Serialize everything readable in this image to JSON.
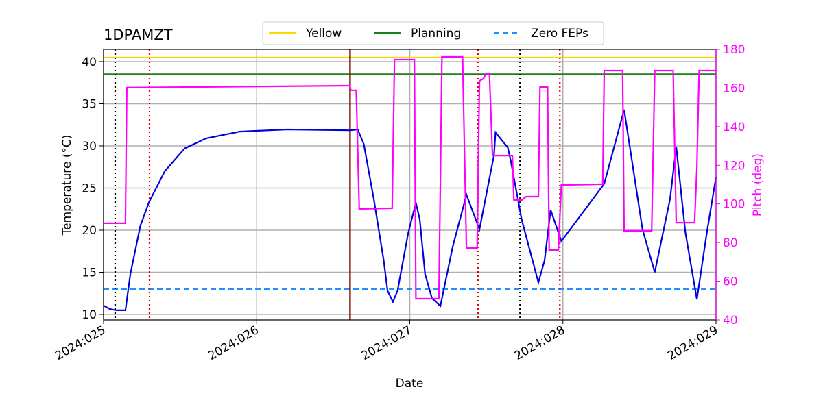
{
  "chart_data": {
    "type": "line",
    "title": "1DPAMZT",
    "xlabel": "Date",
    "ylabel": "Temperature (°C)",
    "y2label": "Pitch (deg)",
    "xlim": [
      25,
      29
    ],
    "xticks": [
      {
        "value": 25,
        "label": "2024:025"
      },
      {
        "value": 26,
        "label": "2024:026"
      },
      {
        "value": 27,
        "label": "2024:027"
      },
      {
        "value": 28,
        "label": "2024:028"
      },
      {
        "value": 29,
        "label": "2024:029"
      }
    ],
    "ylim": [
      9.35,
      41.46
    ],
    "yticks": [
      10,
      15,
      20,
      25,
      30,
      35,
      40
    ],
    "y2lim": [
      40,
      180
    ],
    "y2ticks": [
      40,
      60,
      80,
      100,
      120,
      140,
      160,
      180
    ],
    "y2color": "#ff00ff",
    "grid": true,
    "legend": "top",
    "limits": [
      {
        "name": "Yellow",
        "color": "#ffd700",
        "value": 40.5,
        "style": "solid"
      },
      {
        "name": "Planning",
        "color": "#1a801a",
        "value": 38.5,
        "style": "solid"
      },
      {
        "name": "Zero FEPs",
        "color": "#1e90ff",
        "value": 13,
        "style": "dashed"
      }
    ],
    "vlines": [
      {
        "x": 25.076,
        "color": "#000000",
        "style": "dotted"
      },
      {
        "x": 25.3,
        "color": "#dd0000",
        "style": "dotted"
      },
      {
        "x": 26.61,
        "color": "#1a801a",
        "style": "solid"
      },
      {
        "x": 26.61,
        "color": "#8b0000",
        "style": "solid"
      },
      {
        "x": 27.445,
        "color": "#dd0000",
        "style": "dotted"
      },
      {
        "x": 27.72,
        "color": "#000000",
        "style": "dotted"
      },
      {
        "x": 27.98,
        "color": "#dd0000",
        "style": "dotted"
      }
    ],
    "series": [
      {
        "color": "#0000dd",
        "x": [
          25.0,
          25.04,
          25.085,
          25.143,
          25.175,
          25.24,
          25.296,
          25.4,
          25.53,
          25.67,
          25.89,
          26.2,
          26.61,
          26.66,
          26.7,
          26.765,
          26.83,
          26.855,
          26.89,
          26.92,
          26.99,
          27.04,
          27.065,
          27.1,
          27.145,
          27.2,
          27.28,
          27.37,
          27.455,
          27.55,
          27.56,
          27.64,
          27.66,
          27.73,
          27.84,
          27.88,
          27.92,
          27.99,
          28.13,
          28.27,
          28.4,
          28.52,
          28.6,
          28.7,
          28.74,
          28.8,
          28.875,
          28.94,
          29.0
        ],
        "values": [
          11.06,
          10.65,
          10.5,
          10.5,
          14.8,
          20.5,
          23.3,
          27.0,
          29.7,
          30.9,
          31.7,
          31.95,
          31.85,
          31.95,
          30.2,
          23.7,
          16.4,
          12.8,
          11.5,
          12.8,
          19.7,
          23.25,
          21.3,
          14.8,
          11.9,
          11.0,
          18.0,
          24.2,
          20.1,
          28.9,
          31.6,
          29.8,
          28.2,
          21.3,
          13.8,
          16.4,
          22.4,
          18.7,
          22.1,
          25.5,
          34.3,
          20.1,
          15.0,
          23.7,
          29.9,
          19.7,
          11.8,
          19.7,
          26.3
        ]
      },
      {
        "color": "#ff00ff",
        "axis": "y2",
        "x": [
          25.0,
          25.143,
          25.152,
          26.61,
          26.615,
          26.65,
          26.67,
          26.885,
          26.9,
          27.03,
          27.04,
          27.19,
          27.21,
          27.345,
          27.37,
          27.44,
          27.455,
          27.48,
          27.5,
          27.52,
          27.54,
          27.67,
          27.68,
          27.73,
          27.76,
          27.84,
          27.85,
          27.9,
          27.91,
          27.97,
          27.99,
          28.26,
          28.27,
          28.39,
          28.4,
          28.58,
          28.6,
          28.72,
          28.74,
          28.86,
          28.875,
          28.89,
          29.0
        ],
        "values": [
          90,
          90,
          160.2,
          161.2,
          158.8,
          158.8,
          97.4,
          97.8,
          174.7,
          174.7,
          51,
          51,
          176.1,
          176.1,
          77.2,
          77.2,
          163.7,
          164.8,
          167.6,
          167.6,
          125,
          125,
          102,
          102,
          103.8,
          103.8,
          160.5,
          160.5,
          76.2,
          76.2,
          109.8,
          110.2,
          169,
          169,
          86.1,
          86.1,
          169,
          169,
          90.3,
          90.3,
          118.7,
          169,
          169
        ]
      }
    ]
  }
}
